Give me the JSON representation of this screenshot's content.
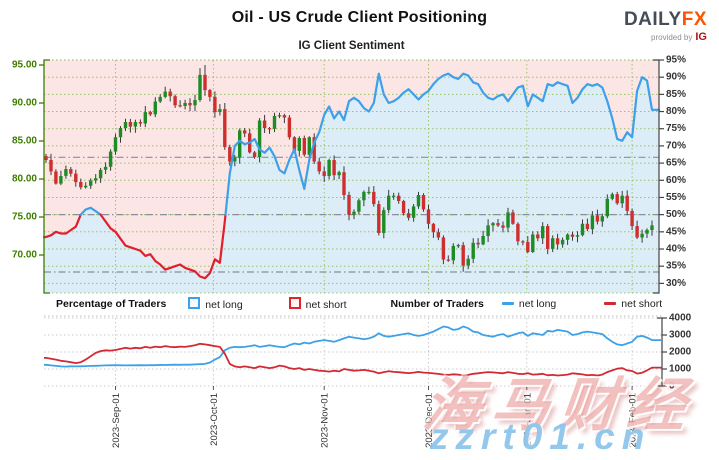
{
  "header": {
    "title": "Oil - US Crude Client Positioning",
    "subtitle": "IG Client Sentiment",
    "logo": {
      "daily": "DAILY",
      "fx": "FX",
      "provided_by": "provided by",
      "ig": "IG"
    }
  },
  "legend": {
    "percentage_label": "Percentage of Traders",
    "pct_net_long": "net long",
    "pct_net_short": "net short",
    "number_label": "Number of Traders",
    "num_net_long": "net long",
    "num_net_short": "net short"
  },
  "watermark": {
    "cn": "海马财经",
    "url": "zzrt01.cn"
  },
  "colors": {
    "up": "#1f8b24",
    "down": "#cf2e2e",
    "wick": "#3a3a3a",
    "net_long": "#3da0e8",
    "net_short": "#e01f2d",
    "pink_fill": "#fbe5e5",
    "blue_fill": "#dcedf8",
    "grid_green": "#86b84d",
    "axis_green": "#3e7c00",
    "ref_gray": "#8a9099",
    "count_long": "#3da0e8",
    "count_short": "#d22a35",
    "pct_axis_color": "#333333",
    "logo_fx": "#ff5400"
  },
  "chart_data": [
    {
      "type": "candlestick+line+area",
      "title": "Oil - US Crude Client Positioning",
      "subtitle": "IG Client Sentiment",
      "price_axis": {
        "ticks": [
          95,
          90,
          85,
          80,
          75,
          70
        ],
        "min": 65.0,
        "max": 95.66
      },
      "pct_axis": {
        "ticks": [
          95,
          90,
          85,
          80,
          75,
          70,
          65,
          60,
          55,
          50,
          45,
          40,
          35,
          30
        ],
        "min": 27.2,
        "max": 95.0
      },
      "ref_lines_pct": [
        66.7,
        50,
        33.3
      ],
      "months": [
        {
          "label": "2023-Sep-01",
          "i": 14
        },
        {
          "label": "2023-Oct-01",
          "i": 33.7
        },
        {
          "label": "2023-Nov-01",
          "i": 56
        },
        {
          "label": "2023-Dec-01",
          "i": 77
        },
        {
          "label": "2024-Jan-01",
          "i": 96.8
        },
        {
          "label": "2024-Feb-01",
          "i": 118
        }
      ],
      "close": [
        82.5,
        81.0,
        79.4,
        80.4,
        81.3,
        80.7,
        79.6,
        78.9,
        79.1,
        79.8,
        80.1,
        81.2,
        81.6,
        83.6,
        85.5,
        86.7,
        87.5,
        86.9,
        87.5,
        87.3,
        88.8,
        88.5,
        90.2,
        90.8,
        91.5,
        90.9,
        89.7,
        89.6,
        90.0,
        89.7,
        90.4,
        93.7,
        91.7,
        90.8,
        88.8,
        89.2,
        84.2,
        82.3,
        82.8,
        86.4,
        86.0,
        83.5,
        82.9,
        87.7,
        86.7,
        86.6,
        88.3,
        88.4,
        88.1,
        85.5,
        83.7,
        85.4,
        83.2,
        85.5,
        82.3,
        81.0,
        80.4,
        82.5,
        80.5,
        80.9,
        77.9,
        75.3,
        75.7,
        77.2,
        78.3,
        78.3,
        76.7,
        72.9,
        75.9,
        77.8,
        77.8,
        77.1,
        75.5,
        74.9,
        76.4,
        77.9,
        76.0,
        74.1,
        73.0,
        72.3,
        69.4,
        69.3,
        71.2,
        71.3,
        68.6,
        69.5,
        71.6,
        71.4,
        72.5,
        73.9,
        74.2,
        73.9,
        73.6,
        75.6,
        74.1,
        71.8,
        71.7,
        70.4,
        72.7,
        72.2,
        73.8,
        70.8,
        72.2,
        71.4,
        72.0,
        72.7,
        72.4,
        72.6,
        74.1,
        73.4,
        75.2,
        74.4,
        75.1,
        77.4,
        78.0,
        76.8,
        77.8,
        75.8,
        73.8,
        72.3,
        72.8,
        73.3,
        73.9
      ],
      "high_override": {
        "31": 94.6,
        "32": 95.0
      },
      "low_override": {
        "84": 67.8
      },
      "net_long_pct": [
        43.5,
        44,
        45,
        44.5,
        44.5,
        45.5,
        46.5,
        50,
        51.5,
        52,
        51,
        50,
        48,
        46,
        45,
        43,
        41,
        40.5,
        40,
        39.5,
        38,
        38.5,
        36.5,
        35.5,
        34,
        34.5,
        35,
        35.5,
        34.5,
        34,
        33.5,
        32,
        31.5,
        33,
        37,
        36,
        48,
        62,
        70,
        71.5,
        70.5,
        71,
        72,
        69,
        68,
        69.5,
        67,
        63,
        62,
        66,
        69,
        63,
        57.5,
        66,
        71,
        74,
        79,
        81.5,
        78,
        80,
        77.5,
        83,
        84,
        83,
        81,
        80,
        82.5,
        91,
        85,
        82.5,
        83,
        84,
        85.5,
        86.5,
        85,
        83.5,
        85,
        86,
        88,
        89.5,
        90.5,
        91,
        90,
        89.5,
        91,
        90.5,
        88.5,
        88,
        85.5,
        84,
        83.5,
        84.5,
        85,
        83,
        85,
        87,
        87.5,
        81.5,
        85,
        84,
        83,
        88,
        87.5,
        88.5,
        88,
        87.5,
        82.5,
        84,
        86.5,
        88,
        87.5,
        88,
        87,
        83,
        78,
        72,
        71.5,
        74,
        72.5,
        86,
        90,
        89,
        80.5
      ]
    },
    {
      "type": "line",
      "count_axis": {
        "ticks": [
          4000,
          3000,
          2000,
          1000,
          0
        ],
        "min": 0,
        "max": 4000
      },
      "series": [
        {
          "name": "net long",
          "values": [
            1250,
            1210,
            1180,
            1150,
            1140,
            1160,
            1150,
            1160,
            1170,
            1180,
            1190,
            1200,
            1210,
            1220,
            1230,
            1220,
            1210,
            1220,
            1215,
            1225,
            1220,
            1230,
            1225,
            1240,
            1235,
            1245,
            1255,
            1250,
            1260,
            1255,
            1270,
            1280,
            1300,
            1380,
            1550,
            1700,
            2100,
            2250,
            2300,
            2280,
            2300,
            2350,
            2400,
            2300,
            2350,
            2400,
            2350,
            2300,
            2280,
            2400,
            2500,
            2450,
            2550,
            2500,
            2600,
            2650,
            2700,
            2650,
            2600,
            2700,
            2800,
            2900,
            2850,
            2800,
            2750,
            2800,
            2900,
            3100,
            2950,
            2900,
            2950,
            3000,
            3050,
            3100,
            3000,
            2950,
            3000,
            3100,
            3200,
            3350,
            3500,
            3450,
            3300,
            3350,
            3500,
            3400,
            3200,
            3150,
            3000,
            2950,
            2900,
            3000,
            3050,
            2900,
            3000,
            3100,
            3150,
            2950,
            3100,
            3050,
            3000,
            3250,
            3200,
            3300,
            3250,
            3200,
            3000,
            3050,
            3150,
            3200,
            3150,
            3100,
            3050,
            2800,
            2600,
            2450,
            2400,
            2500,
            2600,
            2900,
            2950,
            2850,
            2700
          ]
        },
        {
          "name": "net short",
          "values": [
            1650,
            1600,
            1550,
            1480,
            1450,
            1400,
            1350,
            1400,
            1550,
            1750,
            1950,
            2050,
            2100,
            2080,
            2120,
            2180,
            2250,
            2200,
            2250,
            2220,
            2300,
            2250,
            2320,
            2280,
            2350,
            2300,
            2280,
            2320,
            2300,
            2350,
            2400,
            2480,
            2450,
            2400,
            2350,
            2300,
            1900,
            1300,
            1150,
            1100,
            1150,
            1100,
            1050,
            1150,
            1100,
            1050,
            1100,
            1200,
            1150,
            1050,
            1000,
            1050,
            950,
            1000,
            950,
            900,
            880,
            850,
            900,
            860,
            1000,
            950,
            900,
            920,
            950,
            900,
            850,
            750,
            820,
            870,
            830,
            810,
            780,
            760,
            790,
            830,
            790,
            770,
            740,
            710,
            670,
            650,
            690,
            670,
            620,
            650,
            720,
            750,
            790,
            820,
            800,
            770,
            750,
            820,
            770,
            720,
            700,
            760,
            670,
            690,
            720,
            630,
            650,
            620,
            640,
            670,
            750,
            720,
            680,
            630,
            650,
            620,
            670,
            820,
            920,
            1020,
            1050,
            920,
            880,
            730,
            780,
            920,
            1080
          ]
        }
      ]
    }
  ]
}
